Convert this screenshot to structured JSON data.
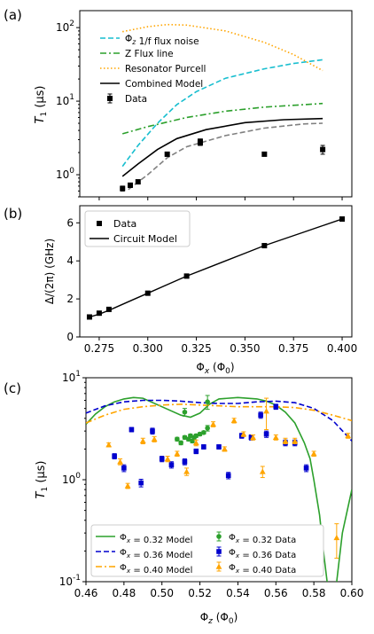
{
  "chart_data": [
    {
      "panel": "(a)",
      "type": "line",
      "ylabel": "T_1 (μs)",
      "yscale": "log",
      "xlim": [
        0.265,
        0.405
      ],
      "ylim": [
        0.5,
        170
      ],
      "yticks": [
        {
          "v": 1,
          "label": "10^0"
        },
        {
          "v": 10,
          "label": "10^1"
        },
        {
          "v": 100,
          "label": "10^2"
        }
      ],
      "legend": [
        "Φ_z 1/f flux noise",
        "Z Flux line",
        "Resonator Purcell",
        "Combined Model",
        "Data"
      ],
      "series": [
        {
          "name": "Φ_z 1/f flux noise",
          "color": "#17becf",
          "dash": "6,3",
          "x": [
            0.287,
            0.295,
            0.305,
            0.315,
            0.325,
            0.34,
            0.36,
            0.375,
            0.39
          ],
          "y": [
            1.3,
            2.5,
            5.0,
            9.0,
            13.5,
            20.5,
            27.5,
            32.5,
            36.5
          ]
        },
        {
          "name": "Z Flux line",
          "color": "#2ca02c",
          "dash": "7,3,2,3",
          "x": [
            0.287,
            0.3,
            0.32,
            0.34,
            0.36,
            0.39
          ],
          "y": [
            3.6,
            4.5,
            6.0,
            7.3,
            8.3,
            9.3
          ]
        },
        {
          "name": "Resonator Purcell",
          "color": "#ffa500",
          "dash": "1.5,2.5",
          "x": [
            0.287,
            0.3,
            0.31,
            0.32,
            0.34,
            0.36,
            0.375,
            0.39
          ],
          "y": [
            88,
            103,
            110,
            108,
            90,
            63,
            43,
            26
          ]
        },
        {
          "name": "Combined Model",
          "color": "#000000",
          "dash": "",
          "x": [
            0.287,
            0.295,
            0.305,
            0.315,
            0.33,
            0.35,
            0.37,
            0.39
          ],
          "y": [
            0.95,
            1.4,
            2.2,
            3.1,
            4.1,
            5.1,
            5.6,
            5.8
          ]
        },
        {
          "name": "",
          "color": "#808080",
          "dash": "6,3",
          "x": [
            0.29,
            0.3,
            0.31,
            0.32,
            0.34,
            0.36,
            0.38,
            0.39
          ],
          "y": [
            0.63,
            1.0,
            1.7,
            2.4,
            3.4,
            4.3,
            4.9,
            5.0
          ]
        }
      ],
      "data_points": {
        "name": "Data",
        "x": [
          0.287,
          0.291,
          0.295,
          0.31,
          0.327,
          0.327,
          0.36,
          0.39
        ],
        "y": [
          0.65,
          0.72,
          0.8,
          1.9,
          2.7,
          2.85,
          1.9,
          2.2
        ],
        "err": [
          0.05,
          0.05,
          0.05,
          0.12,
          0.2,
          0.2,
          0.1,
          0.3
        ]
      }
    },
    {
      "panel": "(b)",
      "type": "line",
      "ylabel": "Δ/(2π) (GHz)",
      "xlabel": "Φ_x (Φ_0)",
      "xlim": [
        0.265,
        0.405
      ],
      "ylim": [
        0,
        6.9
      ],
      "xticks": [
        0.275,
        0.3,
        0.325,
        0.35,
        0.375,
        0.4
      ],
      "xticklabels": [
        "0.275",
        "0.300",
        "0.325",
        "0.350",
        "0.375",
        "0.400"
      ],
      "yticks": [
        0,
        2,
        4,
        6
      ],
      "legend": [
        "Data",
        "Circuit Model"
      ],
      "series": [
        {
          "name": "Circuit Model",
          "color": "#000000",
          "x": [
            0.27,
            0.275,
            0.28,
            0.29,
            0.3,
            0.31,
            0.32,
            0.33,
            0.34,
            0.35,
            0.36,
            0.37,
            0.38,
            0.39,
            0.4
          ],
          "y": [
            1.05,
            1.2,
            1.4,
            1.85,
            2.3,
            2.75,
            3.2,
            3.6,
            4.0,
            4.4,
            4.8,
            5.15,
            5.5,
            5.85,
            6.2
          ]
        }
      ],
      "data_points": {
        "name": "Data",
        "x": [
          0.27,
          0.275,
          0.28,
          0.3,
          0.32,
          0.36,
          0.4
        ],
        "y": [
          1.05,
          1.25,
          1.45,
          2.3,
          3.2,
          4.8,
          6.2
        ]
      }
    },
    {
      "panel": "(c)",
      "type": "scatter",
      "ylabel": "T_1 (μs)",
      "xlabel": "Φ_z (Φ_0)",
      "yscale": "log",
      "xlim": [
        0.46,
        0.6
      ],
      "ylim": [
        0.1,
        10
      ],
      "xticks": [
        0.46,
        0.48,
        0.5,
        0.52,
        0.54,
        0.56,
        0.58,
        0.6
      ],
      "xticklabels": [
        "0.46",
        "0.48",
        "0.50",
        "0.52",
        "0.54",
        "0.56",
        "0.58",
        "0.60"
      ],
      "yticks": [
        {
          "v": 0.1,
          "label": "10^-1"
        },
        {
          "v": 1,
          "label": "10^0"
        },
        {
          "v": 10,
          "label": "10^1"
        }
      ],
      "legend_entries": [
        "Φ_x = 0.32 Model",
        "Φ_x = 0.36 Model",
        "Φ_x = 0.40 Model",
        "Φ_x = 0.32 Data",
        "Φ_x = 0.36 Data",
        "Φ_x = 0.40 Data"
      ],
      "models": [
        {
          "name": "Φ_x = 0.32 Model",
          "color": "#2ca02c",
          "dash": "",
          "x": [
            0.46,
            0.465,
            0.47,
            0.475,
            0.48,
            0.485,
            0.49,
            0.5,
            0.51,
            0.515,
            0.52,
            0.525,
            0.53,
            0.54,
            0.55,
            0.555,
            0.56,
            0.565,
            0.57,
            0.575,
            0.578,
            0.58,
            0.583,
            0.585,
            0.587,
            0.5885,
            0.59,
            0.592,
            0.595,
            0.6
          ],
          "y": [
            3.5,
            4.4,
            5.2,
            5.8,
            6.2,
            6.4,
            6.3,
            5.2,
            4.3,
            4.1,
            4.5,
            5.5,
            6.2,
            6.4,
            6.2,
            5.9,
            5.4,
            4.6,
            3.6,
            2.3,
            1.6,
            1.0,
            0.45,
            0.2,
            0.1,
            0.08,
            0.08,
            0.1,
            0.3,
            0.8
          ]
        },
        {
          "name": "Φ_x = 0.36 Model",
          "color": "#0000cd",
          "dash": "6,3",
          "x": [
            0.46,
            0.47,
            0.48,
            0.49,
            0.5,
            0.51,
            0.52,
            0.53,
            0.54,
            0.55,
            0.56,
            0.57,
            0.58,
            0.59,
            0.6
          ],
          "y": [
            4.5,
            5.3,
            5.8,
            6.0,
            6.0,
            5.9,
            5.7,
            5.6,
            5.6,
            5.8,
            5.9,
            5.7,
            5.0,
            3.8,
            2.4
          ]
        },
        {
          "name": "Φ_x = 0.40 Model",
          "color": "#ffa500",
          "dash": "7,3,2,3",
          "x": [
            0.46,
            0.47,
            0.48,
            0.49,
            0.5,
            0.51,
            0.52,
            0.53,
            0.54,
            0.55,
            0.56,
            0.57,
            0.58,
            0.59,
            0.6
          ],
          "y": [
            3.6,
            4.3,
            4.9,
            5.2,
            5.4,
            5.5,
            5.4,
            5.3,
            5.2,
            5.2,
            5.2,
            5.1,
            4.8,
            4.3,
            3.8
          ]
        }
      ],
      "data_sets": [
        {
          "name": "Φ_x = 0.32 Data",
          "color": "#2ca02c",
          "marker": "circle",
          "x": [
            0.508,
            0.51,
            0.512,
            0.514,
            0.515,
            0.516,
            0.517,
            0.518,
            0.52,
            0.522,
            0.524,
            0.512,
            0.524
          ],
          "y": [
            2.5,
            2.3,
            2.6,
            2.5,
            2.7,
            2.4,
            2.6,
            2.7,
            2.8,
            2.9,
            3.2,
            4.6,
            5.8
          ],
          "err": [
            0.1,
            0.1,
            0.1,
            0.1,
            0.1,
            0.1,
            0.1,
            0.1,
            0.1,
            0.1,
            0.2,
            0.4,
            0.9
          ]
        },
        {
          "name": "Φ_x = 0.36 Data",
          "color": "#0000cd",
          "marker": "square",
          "x": [
            0.475,
            0.48,
            0.484,
            0.489,
            0.495,
            0.5,
            0.505,
            0.512,
            0.518,
            0.522,
            0.53,
            0.535,
            0.542,
            0.547,
            0.552,
            0.555,
            0.56,
            0.565,
            0.57,
            0.576
          ],
          "y": [
            1.7,
            1.3,
            3.1,
            0.93,
            3.0,
            1.6,
            1.4,
            1.5,
            1.9,
            2.1,
            2.1,
            1.1,
            2.7,
            2.6,
            4.3,
            2.8,
            5.2,
            2.3,
            2.3,
            1.3
          ],
          "err": [
            0.1,
            0.1,
            0.15,
            0.08,
            0.2,
            0.1,
            0.1,
            0.1,
            0.1,
            0.1,
            0.1,
            0.08,
            0.15,
            0.15,
            0.3,
            0.2,
            0.3,
            0.15,
            0.15,
            0.1
          ]
        },
        {
          "name": "Φ_x = 0.40 Data",
          "color": "#ffa500",
          "marker": "triangle",
          "x": [
            0.472,
            0.478,
            0.482,
            0.49,
            0.496,
            0.503,
            0.508,
            0.513,
            0.518,
            0.527,
            0.533,
            0.538,
            0.543,
            0.548,
            0.553,
            0.555,
            0.56,
            0.565,
            0.57,
            0.58,
            0.592,
            0.598
          ],
          "y": [
            2.2,
            1.5,
            0.87,
            2.4,
            2.5,
            1.6,
            1.8,
            1.2,
            2.3,
            3.5,
            2.0,
            3.8,
            2.8,
            2.6,
            1.2,
            4.7,
            2.6,
            2.4,
            2.4,
            1.8,
            0.27,
            2.7
          ],
          "err": [
            0.1,
            0.1,
            0.05,
            0.15,
            0.15,
            0.1,
            0.1,
            0.1,
            0.15,
            0.2,
            0.1,
            0.2,
            0.15,
            0.15,
            0.15,
            1.6,
            0.15,
            0.15,
            0.15,
            0.1,
            0.1,
            0.15
          ]
        }
      ]
    }
  ]
}
